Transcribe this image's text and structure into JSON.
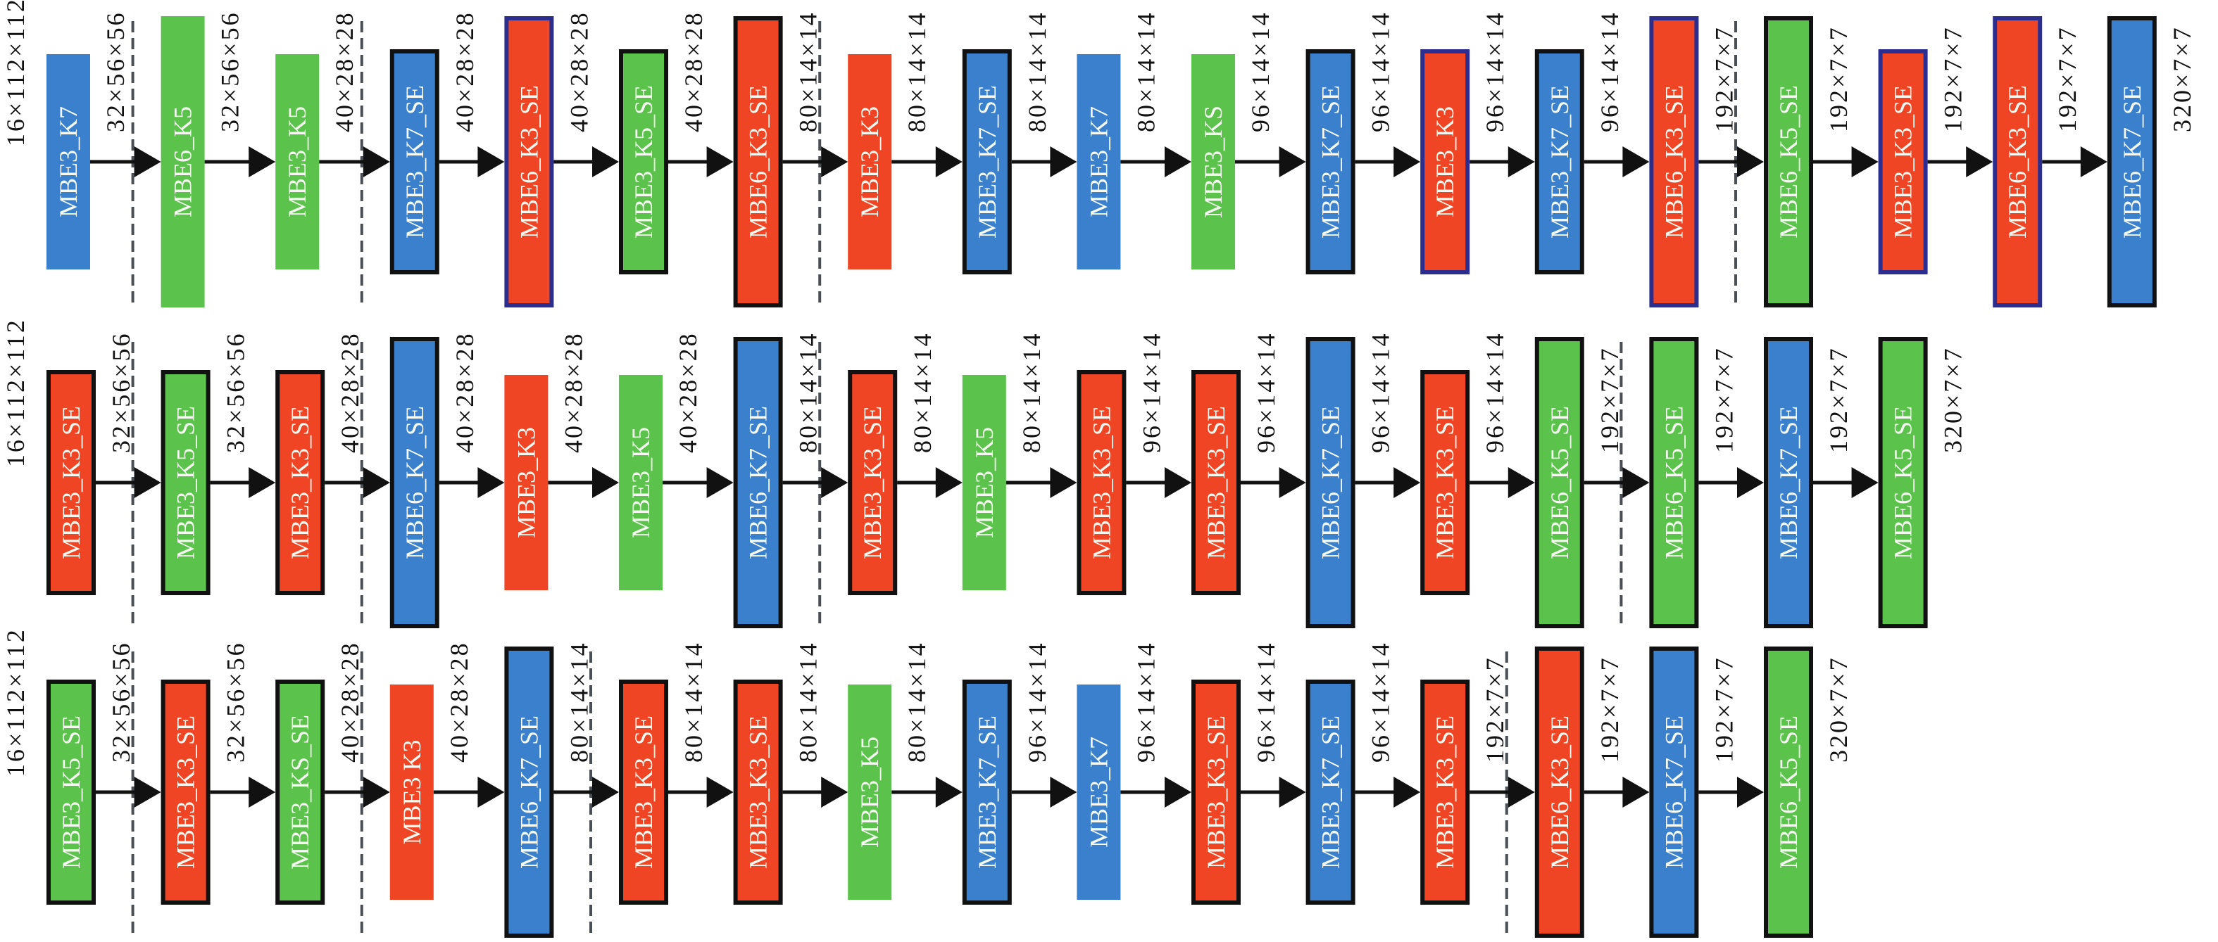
{
  "colors": {
    "blue": "#3a80cd",
    "green": "#5bc34b",
    "red": "#ef4524",
    "border_black": "#111111",
    "border_navy": "#2b2e8e",
    "arrow": "#111111",
    "divider": "#4a4f55"
  },
  "rows": [
    {
      "input_shape": "16×112×112",
      "blocks": [
        {
          "label": "MBE3_K7",
          "color": "blue",
          "border": "none"
        },
        {
          "label": "MBE6_K5",
          "color": "green",
          "border": "none"
        },
        {
          "label": "MBE3_K5",
          "color": "green",
          "border": "none"
        },
        {
          "label": "MBE3_K7_SE",
          "color": "blue",
          "border": "black"
        },
        {
          "label": "MBE6_K3_SE",
          "color": "red",
          "border": "navy"
        },
        {
          "label": "MBE3_K5_SE",
          "color": "green",
          "border": "black"
        },
        {
          "label": "MBE6_K3_SE",
          "color": "red",
          "border": "black"
        },
        {
          "label": "MBE3_K3",
          "color": "red",
          "border": "none"
        },
        {
          "label": "MBE3_K7_SE",
          "color": "blue",
          "border": "black"
        },
        {
          "label": "MBE3_K7",
          "color": "blue",
          "border": "none"
        },
        {
          "label": "MBE3_KS",
          "color": "green",
          "border": "none"
        },
        {
          "label": "MBE3_K7_SE",
          "color": "blue",
          "border": "black"
        },
        {
          "label": "MBE3_K3",
          "color": "red",
          "border": "navy"
        },
        {
          "label": "MBE3_K7_SE",
          "color": "blue",
          "border": "black"
        },
        {
          "label": "MBE6_K3_SE",
          "color": "red",
          "border": "navy"
        },
        {
          "label": "MBE6_K5_SE",
          "color": "green",
          "border": "black"
        },
        {
          "label": "MBE3_K3_SE",
          "color": "red",
          "border": "navy"
        },
        {
          "label": "MBE6_K3_SE",
          "color": "red",
          "border": "navy"
        },
        {
          "label": "MBE6_K7_SE",
          "color": "blue",
          "border": "black"
        }
      ],
      "output_shapes": [
        "32×56×56",
        "32×56×56",
        "40×28×28",
        "40×28×28",
        "40×28×28",
        "40×28×28",
        "80×14×14",
        "80×14×14",
        "80×14×14",
        "80×14×14",
        "96×14×14",
        "96×14×14",
        "96×14×14",
        "96×14×14",
        "192×7×7",
        "192×7×7",
        "192×7×7",
        "192×7×7",
        "320×7×7"
      ],
      "stage_boundaries_after": [
        0,
        2,
        6,
        14
      ]
    },
    {
      "input_shape": "16×112×112",
      "blocks": [
        {
          "label": "MBE3_K3_SE",
          "color": "red",
          "border": "black"
        },
        {
          "label": "MBE3_K5_SE",
          "color": "green",
          "border": "black"
        },
        {
          "label": "MBE3_K3_SE",
          "color": "red",
          "border": "black"
        },
        {
          "label": "MBE6_K7_SE",
          "color": "blue",
          "border": "black"
        },
        {
          "label": "MBE3_K3",
          "color": "red",
          "border": "none"
        },
        {
          "label": "MBE3_K5",
          "color": "green",
          "border": "none"
        },
        {
          "label": "MBE6_K7_SE",
          "color": "blue",
          "border": "black"
        },
        {
          "label": "MBE3_K3_SE",
          "color": "red",
          "border": "black"
        },
        {
          "label": "MBE3_K5",
          "color": "green",
          "border": "none"
        },
        {
          "label": "MBE3_K3_SE",
          "color": "red",
          "border": "black"
        },
        {
          "label": "MBE3_K3_SE",
          "color": "red",
          "border": "black"
        },
        {
          "label": "MBE6_K7_SE",
          "color": "blue",
          "border": "black"
        },
        {
          "label": "MBE3_K3_SE",
          "color": "red",
          "border": "black"
        },
        {
          "label": "MBE6_K5_SE",
          "color": "green",
          "border": "black"
        },
        {
          "label": "MBE6_K5_SE",
          "color": "green",
          "border": "black"
        },
        {
          "label": "MBE6_K7_SE",
          "color": "blue",
          "border": "black"
        },
        {
          "label": "MBE6_K5_SE",
          "color": "green",
          "border": "black"
        }
      ],
      "output_shapes": [
        "32×56×56",
        "32×56×56",
        "40×28×28",
        "40×28×28",
        "40×28×28",
        "40×28×28",
        "80×14×14",
        "80×14×14",
        "80×14×14",
        "96×14×14",
        "96×14×14",
        "96×14×14",
        "96×14×14",
        "192×7×7",
        "192×7×7",
        "192×7×7",
        "320×7×7"
      ],
      "stage_boundaries_after": [
        0,
        2,
        6,
        13
      ]
    },
    {
      "input_shape": "16×112×112",
      "blocks": [
        {
          "label": "MBE3_K5_SE",
          "color": "green",
          "border": "black"
        },
        {
          "label": "MBE3_K3_SE",
          "color": "red",
          "border": "black"
        },
        {
          "label": "MBE3_KS_SE",
          "color": "green",
          "border": "black"
        },
        {
          "label": "MBE3 K3",
          "color": "red",
          "border": "none"
        },
        {
          "label": "MBE6_K7_SE",
          "color": "blue",
          "border": "black"
        },
        {
          "label": "MBE3_K3_SE",
          "color": "red",
          "border": "black"
        },
        {
          "label": "MBE3_K3_SE",
          "color": "red",
          "border": "black"
        },
        {
          "label": "MBE3_K5",
          "color": "green",
          "border": "none"
        },
        {
          "label": "MBE3_K7_SE",
          "color": "blue",
          "border": "black"
        },
        {
          "label": "MBE3_K7",
          "color": "blue",
          "border": "none"
        },
        {
          "label": "MBE3_K3_SE",
          "color": "red",
          "border": "black"
        },
        {
          "label": "MBE3_K7_SE",
          "color": "blue",
          "border": "black"
        },
        {
          "label": "MBE3_K3_SE",
          "color": "red",
          "border": "black"
        },
        {
          "label": "MBE6_K3_SE",
          "color": "red",
          "border": "black"
        },
        {
          "label": "MBE6_K7_SE",
          "color": "blue",
          "border": "black"
        },
        {
          "label": "MBE6_K5_SE",
          "color": "green",
          "border": "black"
        }
      ],
      "output_shapes": [
        "32×56×56",
        "32×56×56",
        "40×28×28",
        "40×28×28",
        "80×14×14",
        "80×14×14",
        "80×14×14",
        "80×14×14",
        "96×14×14",
        "96×14×14",
        "96×14×14",
        "96×14×14",
        "192×7×7",
        "192×7×7",
        "192×7×7",
        "320×7×7"
      ],
      "stage_boundaries_after": [
        0,
        2,
        4,
        12
      ]
    }
  ]
}
